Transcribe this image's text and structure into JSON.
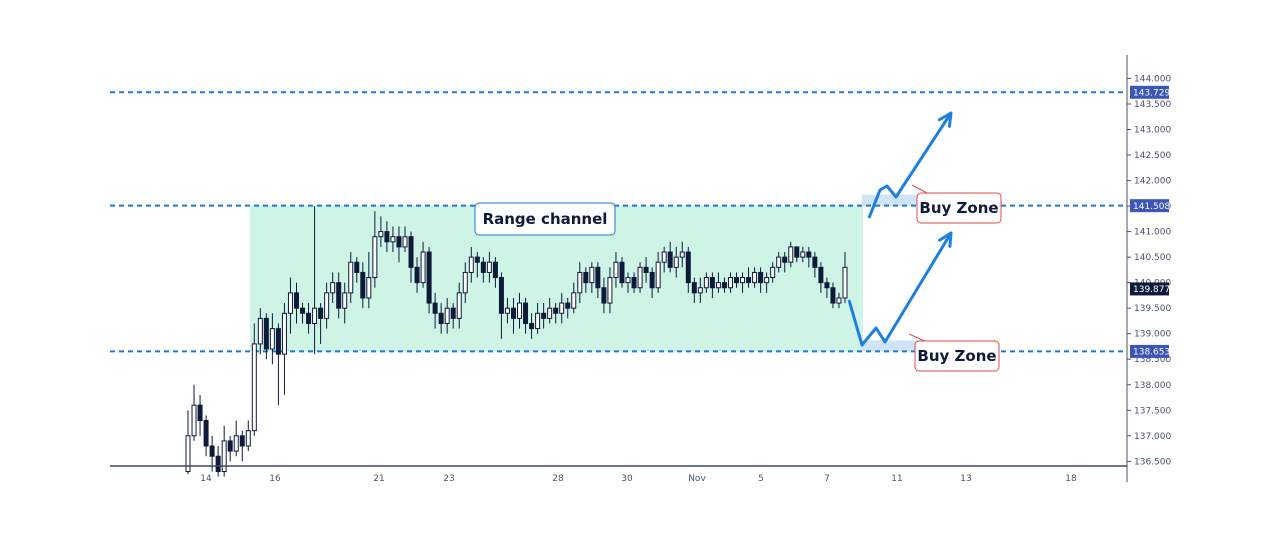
{
  "chart_data": {
    "type": "candlestick",
    "title": "",
    "xlabel": "",
    "ylabel": "",
    "ylim": [
      136.25,
      144.3
    ],
    "y_ticks": [
      "136.500",
      "137.000",
      "137.500",
      "138.000",
      "138.500",
      "139.000",
      "139.500",
      "140.000",
      "140.500",
      "141.000",
      "141.500",
      "142.000",
      "142.500",
      "143.000",
      "143.500",
      "144.000"
    ],
    "x_ticks": [
      "14",
      "16",
      "21",
      "23",
      "28",
      "30",
      "Nov",
      "5",
      "7",
      "11",
      "13",
      "18"
    ],
    "price_tags": [
      {
        "label": "143.729",
        "value": 143.729,
        "color": "#3b55b8"
      },
      {
        "label": "141.508",
        "value": 141.508,
        "color": "#3b55b8"
      },
      {
        "label": "139.877",
        "value": 139.877,
        "color": "#0f1a3a"
      },
      {
        "label": "138.653",
        "value": 138.653,
        "color": "#3b55b8"
      }
    ],
    "levels": [
      143.729,
      141.508,
      138.653
    ],
    "range_channel": {
      "label": "Range channel",
      "top": 141.508,
      "bottom": 138.653
    },
    "buy_zones": [
      {
        "label": "Buy Zone",
        "level": 141.508
      },
      {
        "label": "Buy Zone",
        "level": 138.653
      }
    ],
    "candles": [
      [
        136.3,
        137.0,
        136.25,
        137.5
      ],
      [
        137.0,
        137.6,
        136.9,
        138.0
      ],
      [
        137.6,
        137.3,
        137.0,
        137.8
      ],
      [
        137.3,
        136.8,
        136.6,
        137.4
      ],
      [
        136.8,
        136.6,
        136.3,
        137.0
      ],
      [
        136.6,
        136.3,
        136.2,
        136.8
      ],
      [
        136.3,
        136.9,
        136.2,
        137.2
      ],
      [
        136.9,
        136.7,
        136.5,
        137.0
      ],
      [
        136.7,
        137.0,
        136.6,
        137.3
      ],
      [
        137.0,
        136.8,
        136.5,
        137.1
      ],
      [
        136.8,
        137.1,
        136.7,
        137.3
      ],
      [
        137.1,
        138.8,
        137.0,
        139.2
      ],
      [
        138.8,
        139.3,
        138.6,
        139.5
      ],
      [
        139.3,
        138.7,
        138.5,
        139.4
      ],
      [
        138.7,
        139.1,
        138.4,
        139.4
      ],
      [
        139.1,
        138.6,
        137.6,
        139.2
      ],
      [
        138.6,
        139.4,
        137.8,
        139.6
      ],
      [
        139.4,
        139.8,
        139.0,
        140.1
      ],
      [
        139.8,
        139.5,
        139.2,
        140.0
      ],
      [
        139.5,
        139.4,
        139.2,
        139.6
      ],
      [
        139.4,
        139.2,
        139.0,
        139.6
      ],
      [
        139.2,
        139.5,
        138.6,
        141.5
      ],
      [
        139.5,
        139.3,
        138.8,
        139.6
      ],
      [
        139.3,
        139.8,
        139.1,
        140.0
      ],
      [
        139.8,
        140.0,
        139.6,
        140.2
      ],
      [
        140.0,
        139.5,
        139.3,
        140.2
      ],
      [
        139.5,
        139.8,
        139.2,
        140.0
      ],
      [
        139.8,
        140.4,
        139.6,
        140.6
      ],
      [
        140.4,
        140.2,
        140.0,
        140.5
      ],
      [
        140.2,
        139.7,
        139.5,
        140.4
      ],
      [
        139.7,
        140.1,
        139.5,
        140.6
      ],
      [
        140.1,
        140.9,
        139.9,
        141.4
      ],
      [
        140.9,
        141.0,
        140.7,
        141.3
      ],
      [
        141.0,
        140.8,
        140.6,
        141.2
      ],
      [
        140.8,
        140.9,
        140.6,
        141.1
      ],
      [
        140.9,
        140.7,
        140.4,
        141.1
      ],
      [
        140.7,
        140.9,
        140.6,
        141.1
      ],
      [
        140.9,
        140.3,
        140.0,
        141.0
      ],
      [
        140.3,
        140.0,
        139.8,
        140.5
      ],
      [
        140.0,
        140.6,
        139.9,
        140.8
      ],
      [
        140.6,
        139.6,
        139.4,
        140.7
      ],
      [
        139.6,
        139.4,
        139.1,
        139.8
      ],
      [
        139.4,
        139.2,
        139.0,
        139.6
      ],
      [
        139.2,
        139.5,
        139.0,
        139.7
      ],
      [
        139.5,
        139.3,
        139.1,
        139.6
      ],
      [
        139.3,
        139.8,
        139.1,
        140.0
      ],
      [
        139.8,
        140.2,
        139.6,
        140.4
      ],
      [
        140.2,
        140.5,
        140.0,
        140.7
      ],
      [
        140.5,
        140.4,
        140.1,
        140.6
      ],
      [
        140.4,
        140.2,
        140.0,
        140.5
      ],
      [
        140.2,
        140.4,
        140.0,
        140.6
      ],
      [
        140.4,
        140.1,
        139.9,
        140.5
      ],
      [
        140.1,
        139.4,
        138.9,
        140.2
      ],
      [
        139.4,
        139.5,
        139.2,
        139.7
      ],
      [
        139.5,
        139.3,
        139.0,
        139.7
      ],
      [
        139.3,
        139.6,
        139.1,
        139.8
      ],
      [
        139.6,
        139.2,
        139.0,
        139.7
      ],
      [
        139.2,
        139.1,
        138.9,
        139.4
      ],
      [
        139.1,
        139.4,
        139.0,
        139.6
      ],
      [
        139.4,
        139.3,
        139.1,
        139.6
      ],
      [
        139.3,
        139.5,
        139.2,
        139.7
      ],
      [
        139.5,
        139.4,
        139.2,
        139.6
      ],
      [
        139.4,
        139.6,
        139.2,
        139.8
      ],
      [
        139.6,
        139.5,
        139.3,
        139.7
      ],
      [
        139.5,
        139.8,
        139.4,
        140.0
      ],
      [
        139.8,
        140.2,
        139.6,
        140.4
      ],
      [
        140.2,
        140.0,
        139.8,
        140.3
      ],
      [
        140.0,
        140.3,
        139.8,
        140.4
      ],
      [
        140.3,
        139.9,
        139.7,
        140.4
      ],
      [
        139.9,
        139.6,
        139.4,
        140.1
      ],
      [
        139.6,
        140.1,
        139.4,
        140.3
      ],
      [
        140.1,
        140.4,
        139.9,
        140.6
      ],
      [
        140.4,
        140.0,
        139.9,
        140.5
      ],
      [
        140.0,
        140.1,
        139.8,
        140.2
      ],
      [
        140.1,
        139.9,
        139.8,
        140.2
      ],
      [
        139.9,
        140.3,
        139.8,
        140.4
      ],
      [
        140.3,
        140.2,
        140.0,
        140.5
      ],
      [
        140.2,
        139.9,
        139.7,
        140.3
      ],
      [
        139.9,
        140.4,
        139.8,
        140.6
      ],
      [
        140.4,
        140.6,
        140.2,
        140.7
      ],
      [
        140.6,
        140.3,
        140.2,
        140.8
      ],
      [
        140.3,
        140.5,
        140.1,
        140.7
      ],
      [
        140.5,
        140.6,
        140.3,
        140.8
      ],
      [
        140.6,
        140.0,
        139.8,
        140.7
      ],
      [
        140.0,
        139.8,
        139.6,
        140.1
      ],
      [
        139.8,
        139.9,
        139.6,
        140.1
      ],
      [
        139.9,
        140.1,
        139.8,
        140.2
      ],
      [
        140.1,
        139.9,
        139.7,
        140.2
      ],
      [
        139.9,
        140.0,
        139.8,
        140.2
      ],
      [
        140.0,
        139.9,
        139.8,
        140.1
      ],
      [
        139.9,
        140.1,
        139.8,
        140.2
      ],
      [
        140.1,
        140.0,
        139.9,
        140.2
      ],
      [
        140.0,
        140.1,
        139.8,
        140.2
      ],
      [
        140.1,
        140.0,
        139.9,
        140.3
      ],
      [
        140.0,
        140.2,
        139.9,
        140.3
      ],
      [
        140.2,
        140.0,
        139.8,
        140.3
      ],
      [
        140.0,
        140.1,
        139.8,
        140.2
      ],
      [
        140.1,
        140.3,
        140.0,
        140.4
      ],
      [
        140.3,
        140.5,
        140.2,
        140.6
      ],
      [
        140.5,
        140.4,
        140.2,
        140.6
      ],
      [
        140.4,
        140.7,
        140.3,
        140.8
      ],
      [
        140.7,
        140.5,
        140.4,
        140.7
      ],
      [
        140.5,
        140.6,
        140.4,
        140.7
      ],
      [
        140.6,
        140.5,
        140.3,
        140.7
      ],
      [
        140.5,
        140.3,
        140.1,
        140.6
      ],
      [
        140.3,
        140.0,
        139.8,
        140.4
      ],
      [
        140.0,
        139.9,
        139.7,
        140.1
      ],
      [
        139.9,
        139.6,
        139.5,
        140.0
      ],
      [
        139.6,
        139.7,
        139.5,
        139.8
      ],
      [
        139.7,
        140.3,
        139.6,
        140.6
      ]
    ]
  }
}
